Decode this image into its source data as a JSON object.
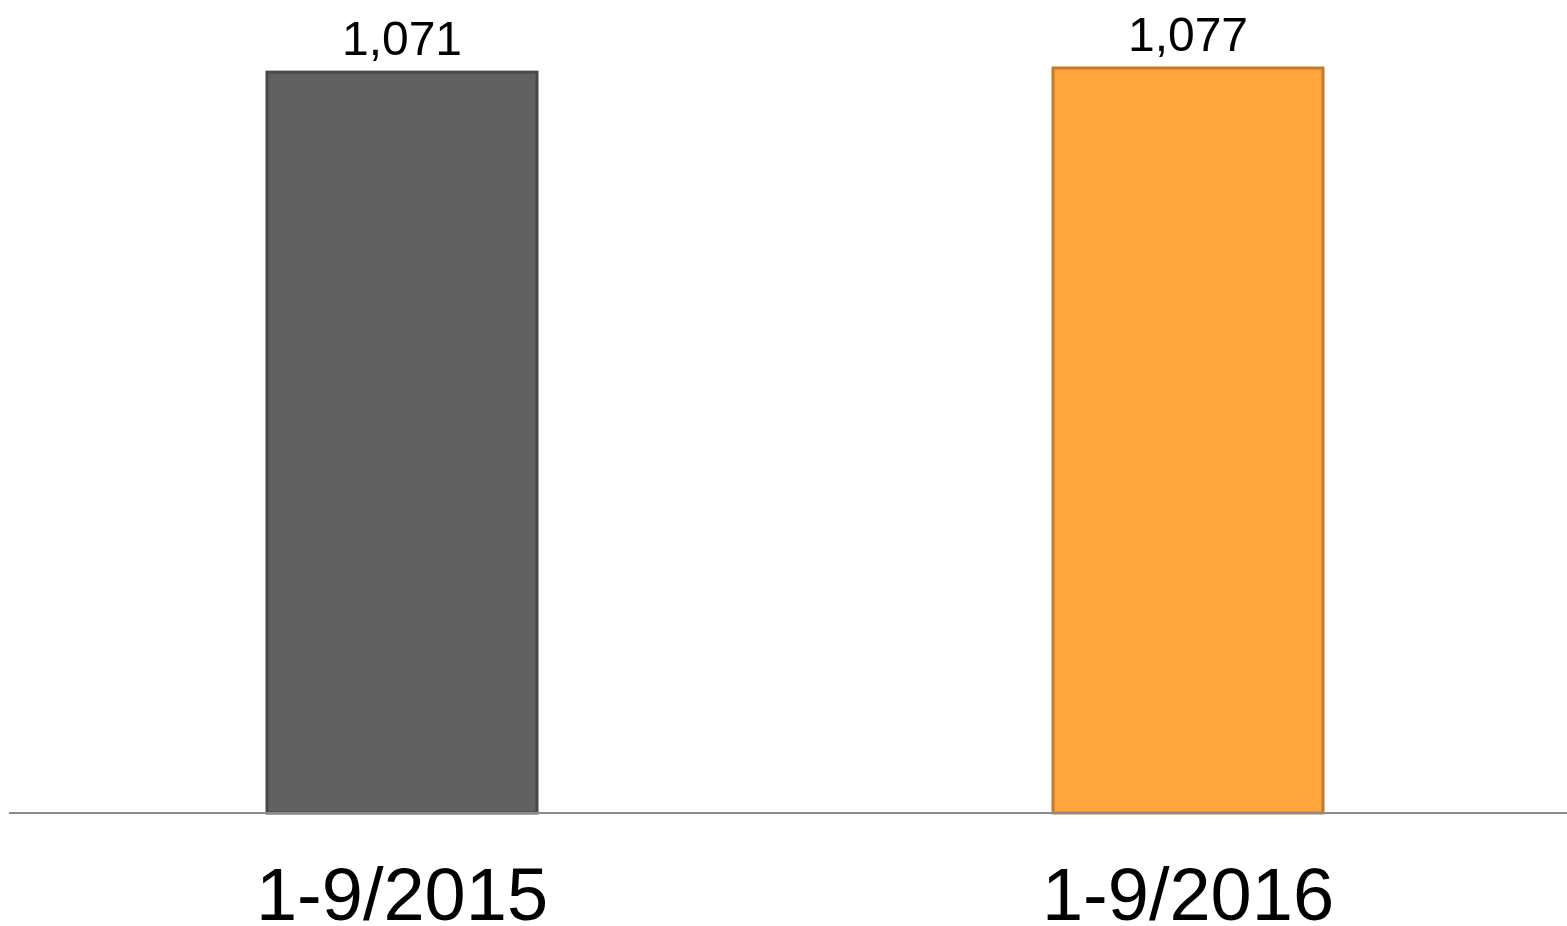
{
  "chart_data": {
    "type": "bar",
    "categories": [
      "1-9/2015",
      "1-9/2016"
    ],
    "values": [
      1071,
      1077
    ],
    "colors": [
      "#616161",
      "#ffa53b"
    ],
    "value_labels": [
      "1,071",
      "1,077"
    ]
  }
}
